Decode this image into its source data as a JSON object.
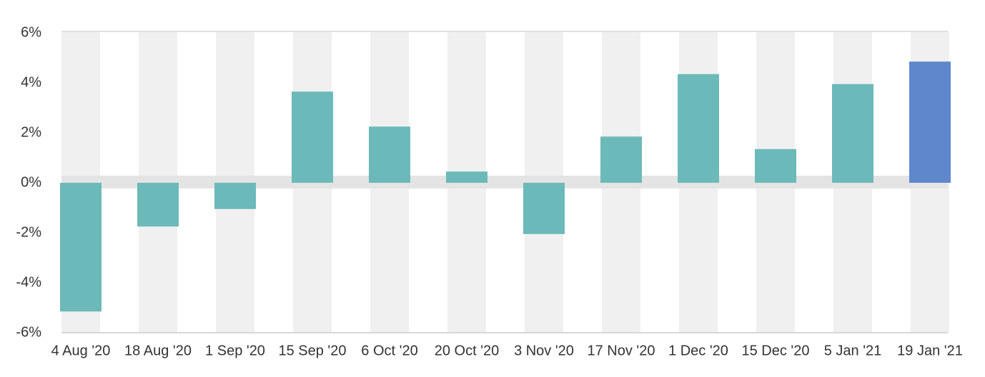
{
  "chart_data": {
    "type": "bar",
    "categories": [
      "4 Aug '20",
      "18 Aug '20",
      "1 Sep '20",
      "15 Sep '20",
      "6 Oct '20",
      "20 Oct '20",
      "3 Nov '20",
      "17 Nov '20",
      "1 Dec '20",
      "15 Dec '20",
      "5 Jan '21",
      "19 Jan '21"
    ],
    "values": [
      -5.15,
      -1.75,
      -1.05,
      3.65,
      2.25,
      0.45,
      -2.05,
      1.85,
      4.35,
      1.35,
      3.95,
      4.85
    ],
    "colors": [
      "#6cb9b9",
      "#6cb9b9",
      "#6cb9b9",
      "#6cb9b9",
      "#6cb9b9",
      "#6cb9b9",
      "#6cb9b9",
      "#6cb9b9",
      "#6cb9b9",
      "#6cb9b9",
      "#6cb9b9",
      "#5f87cc"
    ],
    "ylim": [
      -6,
      6
    ],
    "yticks": [
      {
        "value": -6,
        "label": "-6%"
      },
      {
        "value": -4,
        "label": "-4%"
      },
      {
        "value": -2,
        "label": "-2%"
      },
      {
        "value": 0,
        "label": "0%"
      },
      {
        "value": 2,
        "label": "2%"
      },
      {
        "value": 4,
        "label": "4%"
      },
      {
        "value": 6,
        "label": "6%"
      }
    ]
  }
}
